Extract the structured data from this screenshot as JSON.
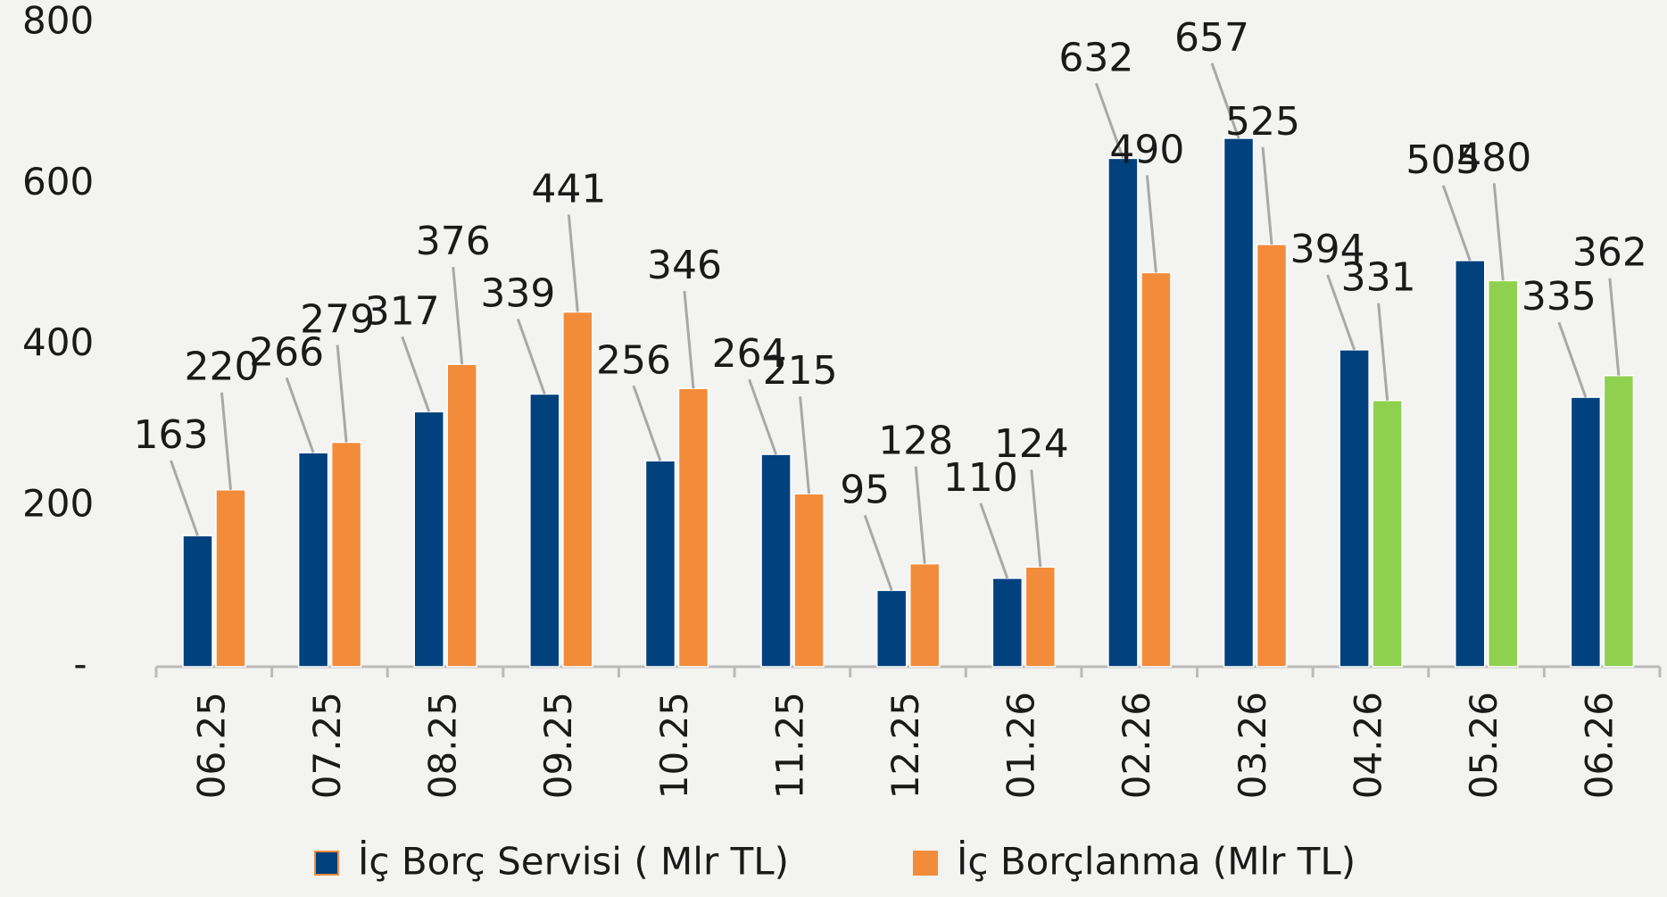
{
  "chart_data": {
    "type": "bar",
    "categories": [
      "06.25",
      "07.25",
      "08.25",
      "09.25",
      "10.25",
      "11.25",
      "12.25",
      "01.26",
      "02.26",
      "03.26",
      "04.26",
      "05.26",
      "06.26"
    ],
    "series": [
      {
        "name": "İç Borç Servisi ( Mlr TL)",
        "color": "#00417e",
        "values": [
          163,
          266,
          317,
          339,
          256,
          264,
          95,
          110,
          632,
          657,
          394,
          505,
          335
        ]
      },
      {
        "name": "İç Borçlanma (Mlr TL)",
        "color": "#f28c3b",
        "colors": [
          "#f28c3b",
          "#f28c3b",
          "#f28c3b",
          "#f28c3b",
          "#f28c3b",
          "#f28c3b",
          "#f28c3b",
          "#f28c3b",
          "#f28c3b",
          "#f28c3b",
          "#8fd14f",
          "#8fd14f",
          "#8fd14f"
        ],
        "values": [
          220,
          279,
          376,
          441,
          346,
          215,
          128,
          124,
          490,
          525,
          331,
          480,
          362
        ]
      }
    ],
    "ylim": [
      0,
      800
    ],
    "yticks": [
      {
        "value": 0,
        "label": "-"
      },
      200,
      400,
      600,
      800
    ],
    "grid": false,
    "legend": "bottom"
  }
}
